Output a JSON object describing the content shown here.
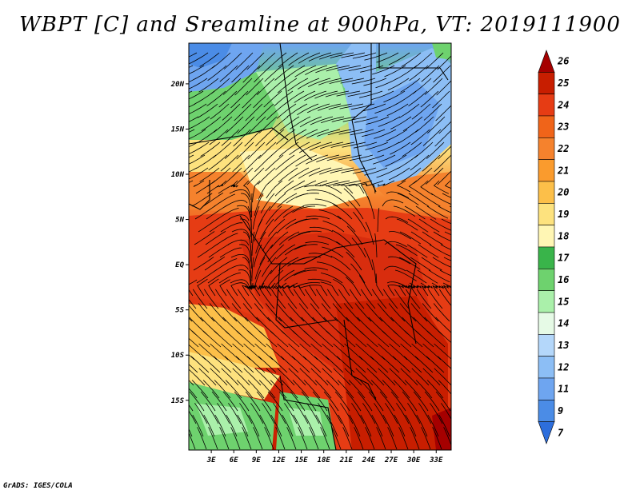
{
  "title": "WBPT [C] and Sreamline at 900hPa, VT: 2019111900",
  "credit": "GrADS: IGES/COLA",
  "map": {
    "lat_labels": [
      "20N",
      "15N",
      "10N",
      "5N",
      "EQ",
      "5S",
      "10S",
      "15S"
    ],
    "lon_labels": [
      "3E",
      "6E",
      "9E",
      "12E",
      "15E",
      "18E",
      "21E",
      "24E",
      "27E",
      "30E",
      "33E"
    ],
    "lat_range": [
      -20.5,
      24.5
    ],
    "lon_range": [
      0,
      35
    ]
  },
  "colorbar": {
    "labels": [
      "26",
      "25",
      "24",
      "23",
      "22",
      "21",
      "20",
      "19",
      "18",
      "17",
      "16",
      "15",
      "14",
      "13",
      "12",
      "11",
      "9",
      "7"
    ],
    "colors": [
      "#a50000",
      "#c81e00",
      "#e63c14",
      "#f06419",
      "#f5822d",
      "#fa9b2d",
      "#fcbf49",
      "#fde27e",
      "#fff6b4",
      "#39b44a",
      "#6ed26e",
      "#aaf0aa",
      "#e6fae6",
      "#b4d7fa",
      "#8cbef5",
      "#6ea5f0",
      "#4b8ce6",
      "#2d6edc"
    ],
    "extend": "both"
  },
  "legend_colors": {
    "warm": "#e23c14",
    "mid": "#fde27e",
    "green": "#6ed26e",
    "cool": "#8cbef5"
  }
}
